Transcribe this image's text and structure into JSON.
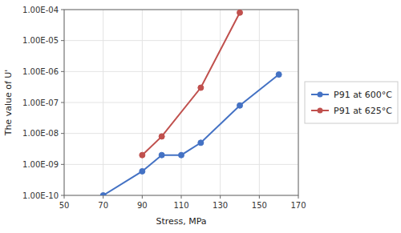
{
  "chart_data": {
    "type": "line",
    "xlabel": "Stress, MPa",
    "ylabel": "The value of U'",
    "series": [
      {
        "name": "P91 at 600°C",
        "color": "#4472C4",
        "x": [
          70,
          90,
          100,
          110,
          120,
          140,
          160
        ],
        "values": [
          1e-10,
          6e-10,
          2e-09,
          2e-09,
          5e-09,
          8e-08,
          8e-07
        ]
      },
      {
        "name": "P91 at 625°C",
        "color": "#C0504D",
        "x": [
          90,
          100,
          120,
          140
        ],
        "values": [
          2e-09,
          8e-09,
          3e-07,
          8e-05
        ]
      }
    ],
    "xlim": [
      50,
      170
    ],
    "xticks": [
      50,
      70,
      90,
      110,
      130,
      150,
      170
    ],
    "ylim": [
      1e-10,
      0.0001
    ],
    "yticks": [
      {
        "value": 1e-10,
        "label": "1.00E-10"
      },
      {
        "value": 1e-09,
        "label": "1.00E-09"
      },
      {
        "value": 1e-08,
        "label": "1.00E-08"
      },
      {
        "value": 1e-07,
        "label": "1.00E-07"
      },
      {
        "value": 1e-06,
        "label": "1.00E-06"
      },
      {
        "value": 1e-05,
        "label": "1.00E-05"
      },
      {
        "value": 0.0001,
        "label": "1.00E-04"
      }
    ],
    "log": "y",
    "grid": true,
    "legend": "right",
    "marker": "circle"
  }
}
